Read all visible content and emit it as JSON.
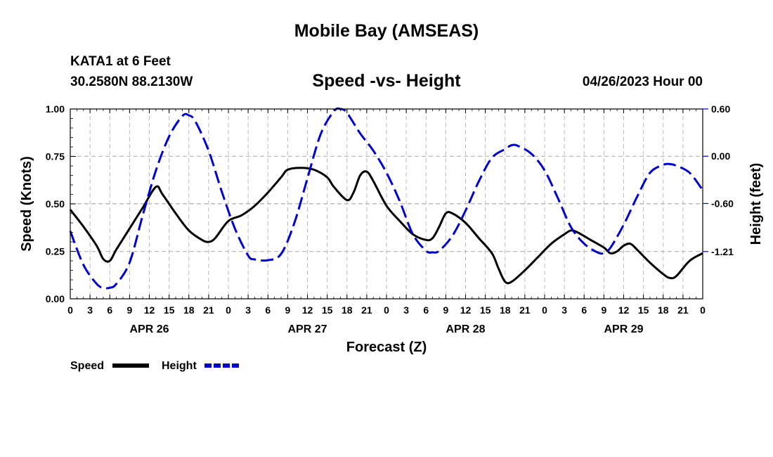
{
  "page": {
    "top_title": "Mobile Bay (AMSEAS)",
    "bottom_title": "Mobile Bay (AMSEAS)",
    "station": "KATA1 at 6 Feet",
    "coords": "30.2580N  88.2130W",
    "subtitle": "Speed -vs- Height",
    "datetime": "04/26/2023 Hour 00"
  },
  "chart_data": {
    "type": "line",
    "title": "Speed -vs- Height",
    "xlabel": "Forecast (Z)",
    "ylabel": "Speed (Knots)",
    "y2label": "Height (feet)",
    "xlim": [
      0,
      96
    ],
    "ylim": [
      0,
      1
    ],
    "y2lim": [
      -1.81,
      0.6
    ],
    "grid": true,
    "legend_position": "bottom-left",
    "x_tick_labels": [
      "0",
      "3",
      "6",
      "9",
      "12",
      "15",
      "18",
      "21",
      "0",
      "3",
      "6",
      "9",
      "12",
      "15",
      "18",
      "21",
      "0",
      "3",
      "6",
      "9",
      "12",
      "15",
      "18",
      "21",
      "0",
      "3",
      "6",
      "9",
      "12",
      "15",
      "18",
      "21",
      "0"
    ],
    "y_tick_labels": [
      "0.00",
      "0.25",
      "0.50",
      "0.75",
      "1.00"
    ],
    "y_tick_values": [
      0,
      0.25,
      0.5,
      0.75,
      1.0
    ],
    "y2_tick_labels": [
      "0.60",
      "0.00",
      "-0.60",
      "-1.21"
    ],
    "y2_tick_values": [
      0.6,
      0.0,
      -0.6,
      -1.21
    ],
    "date_labels": [
      {
        "label": "APR 26",
        "x": 12
      },
      {
        "label": "APR 27",
        "x": 36
      },
      {
        "label": "APR 28",
        "x": 60
      },
      {
        "label": "APR 29",
        "x": 84
      }
    ],
    "series": [
      {
        "name": "Speed",
        "axis": "left",
        "color": "#000000",
        "dash": "solid",
        "points": [
          [
            0,
            0.47
          ],
          [
            2,
            0.38
          ],
          [
            4,
            0.28
          ],
          [
            5,
            0.21
          ],
          [
            6,
            0.2
          ],
          [
            7,
            0.26
          ],
          [
            9,
            0.37
          ],
          [
            11,
            0.48
          ],
          [
            13,
            0.59
          ],
          [
            14,
            0.55
          ],
          [
            16,
            0.45
          ],
          [
            18,
            0.36
          ],
          [
            20,
            0.31
          ],
          [
            21,
            0.3
          ],
          [
            22,
            0.32
          ],
          [
            24,
            0.41
          ],
          [
            26,
            0.44
          ],
          [
            28,
            0.49
          ],
          [
            30,
            0.56
          ],
          [
            32,
            0.64
          ],
          [
            33,
            0.68
          ],
          [
            35,
            0.69
          ],
          [
            37,
            0.68
          ],
          [
            39,
            0.64
          ],
          [
            40,
            0.59
          ],
          [
            42,
            0.52
          ],
          [
            43,
            0.56
          ],
          [
            44,
            0.65
          ],
          [
            45,
            0.67
          ],
          [
            46,
            0.62
          ],
          [
            48,
            0.49
          ],
          [
            50,
            0.41
          ],
          [
            52,
            0.34
          ],
          [
            54,
            0.31
          ],
          [
            55,
            0.32
          ],
          [
            56,
            0.38
          ],
          [
            57,
            0.45
          ],
          [
            58,
            0.45
          ],
          [
            60,
            0.4
          ],
          [
            62,
            0.32
          ],
          [
            64,
            0.24
          ],
          [
            65,
            0.16
          ],
          [
            66,
            0.09
          ],
          [
            67,
            0.09
          ],
          [
            69,
            0.15
          ],
          [
            71,
            0.22
          ],
          [
            73,
            0.29
          ],
          [
            75,
            0.34
          ],
          [
            76,
            0.36
          ],
          [
            77,
            0.35
          ],
          [
            79,
            0.31
          ],
          [
            81,
            0.27
          ],
          [
            82,
            0.24
          ],
          [
            83,
            0.25
          ],
          [
            84,
            0.28
          ],
          [
            85,
            0.29
          ],
          [
            86,
            0.26
          ],
          [
            88,
            0.19
          ],
          [
            90,
            0.13
          ],
          [
            91,
            0.11
          ],
          [
            92,
            0.12
          ],
          [
            94,
            0.2
          ],
          [
            96,
            0.24
          ]
        ]
      },
      {
        "name": "Height",
        "axis": "right",
        "color": "#0000cc",
        "dash": "dashed",
        "points": [
          [
            0,
            -0.95
          ],
          [
            2,
            -1.38
          ],
          [
            4,
            -1.62
          ],
          [
            5,
            -1.67
          ],
          [
            6,
            -1.67
          ],
          [
            7,
            -1.62
          ],
          [
            9,
            -1.35
          ],
          [
            11,
            -0.75
          ],
          [
            13,
            -0.18
          ],
          [
            15,
            0.25
          ],
          [
            17,
            0.51
          ],
          [
            18,
            0.52
          ],
          [
            19,
            0.44
          ],
          [
            21,
            0.07
          ],
          [
            23,
            -0.45
          ],
          [
            25,
            -0.92
          ],
          [
            27,
            -1.26
          ],
          [
            28,
            -1.31
          ],
          [
            30,
            -1.32
          ],
          [
            32,
            -1.24
          ],
          [
            34,
            -0.85
          ],
          [
            36,
            -0.28
          ],
          [
            38,
            0.28
          ],
          [
            40,
            0.57
          ],
          [
            41,
            0.6
          ],
          [
            42,
            0.55
          ],
          [
            44,
            0.29
          ],
          [
            46,
            0.07
          ],
          [
            48,
            -0.21
          ],
          [
            50,
            -0.57
          ],
          [
            52,
            -0.99
          ],
          [
            54,
            -1.2
          ],
          [
            55,
            -1.22
          ],
          [
            56,
            -1.2
          ],
          [
            58,
            -1.01
          ],
          [
            60,
            -0.69
          ],
          [
            62,
            -0.32
          ],
          [
            64,
            -0.02
          ],
          [
            66,
            0.09
          ],
          [
            67,
            0.14
          ],
          [
            68,
            0.13
          ],
          [
            70,
            0.03
          ],
          [
            72,
            -0.18
          ],
          [
            74,
            -0.53
          ],
          [
            76,
            -0.9
          ],
          [
            78,
            -1.11
          ],
          [
            80,
            -1.22
          ],
          [
            81,
            -1.23
          ],
          [
            82,
            -1.16
          ],
          [
            84,
            -0.87
          ],
          [
            86,
            -0.52
          ],
          [
            88,
            -0.21
          ],
          [
            90,
            -0.11
          ],
          [
            91,
            -0.1
          ],
          [
            92,
            -0.12
          ],
          [
            94,
            -0.21
          ],
          [
            96,
            -0.43
          ]
        ]
      }
    ]
  }
}
